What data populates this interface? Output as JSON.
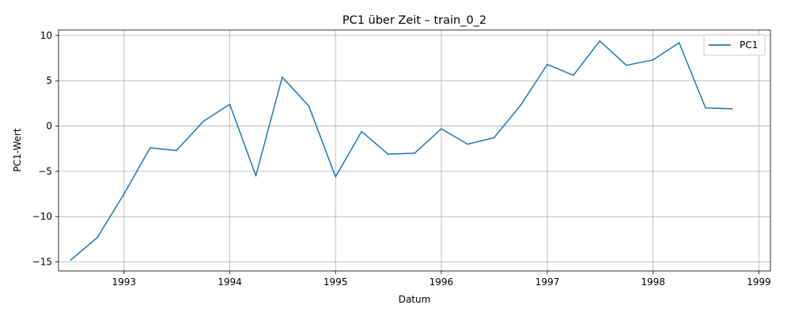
{
  "chart_data": {
    "type": "line",
    "title": "PC1 über Zeit – train_0_2",
    "xlabel": "Datum",
    "ylabel": "PC1-Wert",
    "x": [
      "1992-07-01",
      "1992-10-01",
      "1993-01-01",
      "1993-04-01",
      "1993-07-01",
      "1993-10-01",
      "1994-01-01",
      "1994-04-01",
      "1994-07-01",
      "1994-10-01",
      "1995-01-01",
      "1995-04-01",
      "1995-07-01",
      "1995-10-01",
      "1996-01-01",
      "1996-04-01",
      "1996-07-01",
      "1996-10-01",
      "1997-01-01",
      "1997-04-01",
      "1997-07-01",
      "1997-10-01",
      "1998-01-01",
      "1998-04-01",
      "1998-07-01",
      "1998-10-01"
    ],
    "series": [
      {
        "name": "PC1",
        "color": "#1f77b4",
        "values": [
          -14.8,
          -12.3,
          -7.5,
          -2.4,
          -2.7,
          0.5,
          2.4,
          -5.5,
          5.4,
          2.2,
          -5.6,
          -0.6,
          -3.1,
          -3.0,
          -0.3,
          -2.0,
          -1.3,
          2.3,
          6.8,
          5.6,
          9.4,
          6.7,
          7.3,
          9.2,
          2.0,
          1.9
        ]
      }
    ],
    "xticks": [
      "1993",
      "1994",
      "1995",
      "1996",
      "1997",
      "1998",
      "1999"
    ],
    "yticks": [
      -15,
      -10,
      -5,
      0,
      5,
      10
    ],
    "xlim": [
      "1992-05-20",
      "1999-02-10"
    ],
    "ylim": [
      -16.0,
      10.6
    ],
    "grid": true,
    "legend": "top-right"
  }
}
